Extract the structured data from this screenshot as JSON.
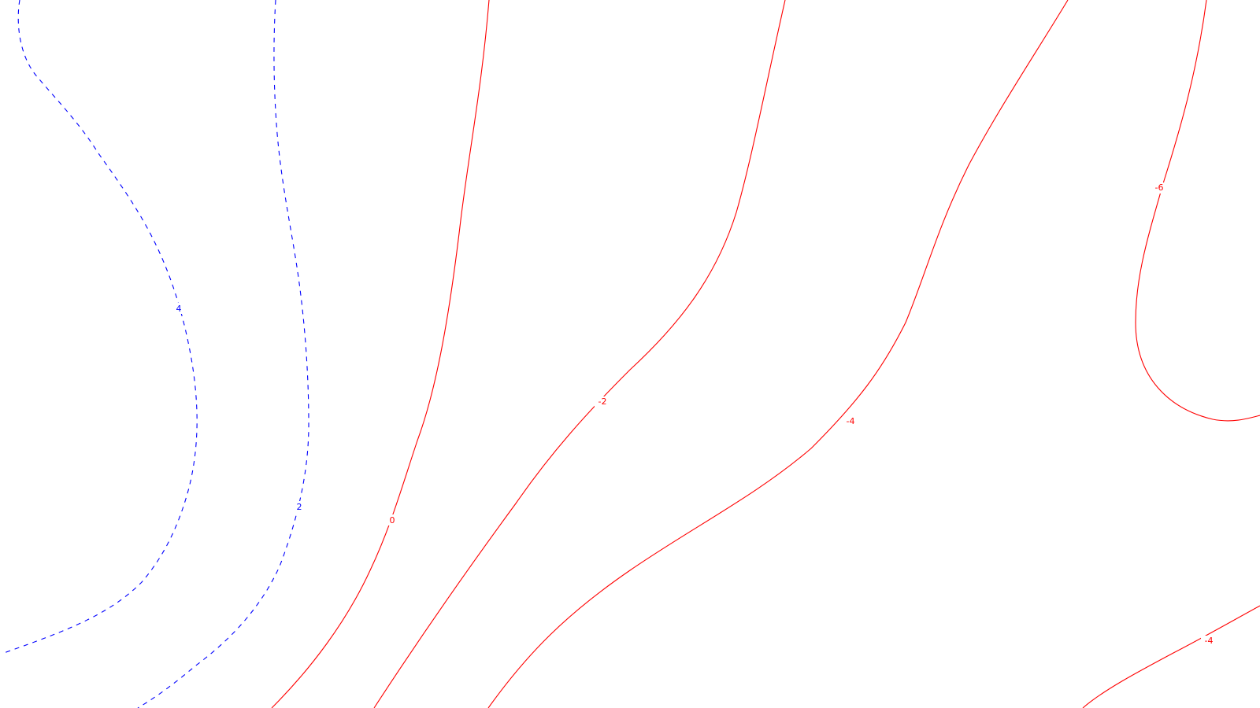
{
  "contour_map": {
    "colors": {
      "positive": "#0000ff",
      "negative": "#ff0000",
      "background": "#ffffff"
    },
    "contours": [
      {
        "level": 4,
        "sign": "positive",
        "style": "dashed",
        "label": "4"
      },
      {
        "level": 2,
        "sign": "positive",
        "style": "dashed",
        "label": "2"
      },
      {
        "level": 0,
        "sign": "negative",
        "style": "solid",
        "label": "0"
      },
      {
        "level": -2,
        "sign": "negative",
        "style": "solid",
        "label": "-2"
      },
      {
        "level": -4,
        "sign": "negative",
        "style": "solid",
        "label": "-4"
      },
      {
        "level": -6,
        "sign": "negative",
        "style": "solid",
        "label": "-6"
      },
      {
        "level": -4,
        "sign": "negative",
        "style": "solid",
        "label": "-4"
      }
    ]
  }
}
